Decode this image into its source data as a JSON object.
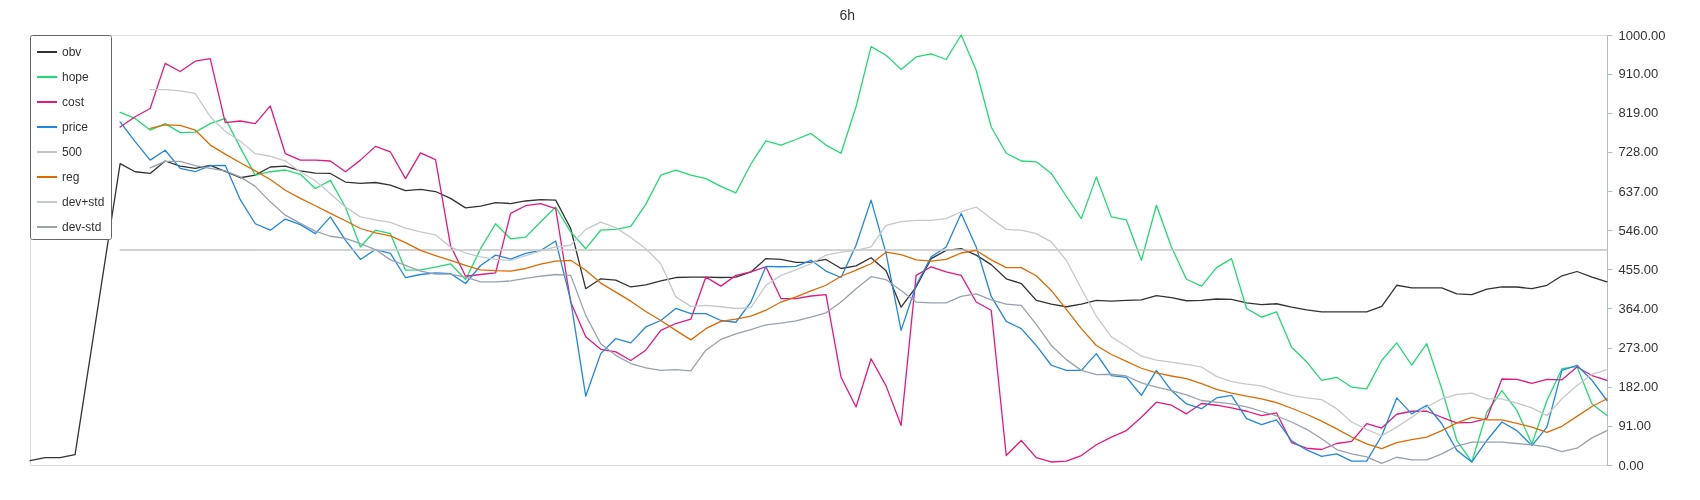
{
  "chart_data": {
    "type": "line",
    "title": "6h",
    "categories": [
      null,
      null,
      null,
      null,
      null,
      null,
      null,
      null,
      null,
      null,
      null,
      null,
      null,
      null,
      null,
      null,
      null,
      null,
      null,
      null,
      null,
      null,
      null,
      null,
      null,
      null,
      null,
      null,
      null,
      null,
      null,
      null,
      null,
      null,
      null,
      null,
      null,
      null,
      null,
      null,
      null,
      null,
      null,
      null,
      null,
      null,
      null,
      null,
      null,
      null,
      null,
      null,
      null,
      null,
      null,
      null,
      null,
      null,
      null,
      null,
      null,
      null,
      null,
      null,
      null,
      null,
      null,
      null,
      null,
      null,
      null,
      null,
      null,
      null,
      null,
      null,
      null,
      null,
      null,
      null,
      null,
      null,
      null,
      null,
      null,
      null,
      null,
      null,
      null,
      null,
      null,
      null,
      null,
      null,
      null,
      null,
      null,
      null,
      null,
      null,
      null,
      null,
      null,
      null,
      null,
      null
    ],
    "series": [
      {
        "name": "obv",
        "color": "#333333",
        "values": [
          10,
          17,
          17,
          24,
          null,
          null,
          701,
          682,
          678,
          707,
          695,
          690,
          697,
          683,
          668,
          674,
          693,
          695,
          684,
          679,
          678,
          658,
          655,
          657,
          651,
          638,
          641,
          636,
          620,
          598,
          602,
          610,
          608,
          614,
          617,
          616,
          550,
          410,
          433,
          430,
          414,
          419,
          428,
          436,
          437,
          437,
          436,
          437,
          449,
          480,
          478,
          471,
          472,
          478,
          457,
          463,
          482,
          452,
          367,
          414,
          480,
          499,
          503,
          488,
          466,
          433,
          422,
          383,
          374,
          368,
          374,
          383,
          381,
          383,
          384,
          394,
          389,
          382,
          383,
          386,
          385,
          377,
          373,
          375,
          367,
          361,
          356,
          356,
          356,
          356,
          369,
          418,
          412,
          412,
          412,
          398,
          396,
          409,
          414,
          414,
          410,
          418,
          440,
          450,
          437,
          426
        ]
      },
      {
        "name": "hope",
        "color": "#1fdc72",
        "values": [
          null,
          null,
          null,
          null,
          null,
          null,
          820,
          806,
          779,
          794,
          773,
          774,
          794,
          806,
          738,
          674,
          682,
          686,
          676,
          643,
          662,
          600,
          507,
          546,
          538,
          453,
          454,
          460,
          468,
          431,
          503,
          561,
          526,
          530,
          565,
          600,
          542,
          503,
          546,
          548,
          555,
          606,
          674,
          686,
          674,
          666,
          648,
          633,
          700,
          754,
          744,
          757,
          771,
          744,
          725,
          833,
          973,
          953,
          920,
          949,
          956,
          943,
          1000,
          918,
          786,
          725,
          707,
          705,
          678,
          625,
          573,
          670,
          577,
          570,
          476,
          604,
          507,
          432,
          416,
          459,
          480,
          364,
          344,
          356,
          274,
          240,
          197,
          204,
          181,
          177,
          243,
          284,
          232,
          282,
          177,
          57,
          7,
          123,
          173,
          127,
          49,
          150,
          224,
          229,
          142,
          115
        ]
      },
      {
        "name": "cost",
        "color": "#e8187e",
        "values": [
          null,
          null,
          null,
          null,
          null,
          null,
          786,
          810,
          829,
          934,
          915,
          939,
          945,
          796,
          800,
          794,
          835,
          724,
          709,
          709,
          707,
          682,
          709,
          741,
          728,
          666,
          726,
          710,
          510,
          439,
          443,
          447,
          585,
          603,
          608,
          596,
          379,
          298,
          269,
          263,
          243,
          267,
          313,
          329,
          339,
          437,
          416,
          441,
          449,
          461,
          387,
          387,
          393,
          396,
          204,
          135,
          247,
          184,
          92,
          441,
          461,
          449,
          441,
          379,
          360,
          22,
          57,
          17,
          7,
          9,
          22,
          47,
          65,
          80,
          111,
          146,
          139,
          119,
          143,
          139,
          133,
          125,
          115,
          121,
          52,
          39,
          36,
          50,
          55,
          96,
          86,
          118,
          125,
          125,
          111,
          98,
          99,
          108,
          200,
          199,
          190,
          199,
          198,
          228,
          208,
          197
        ]
      },
      {
        "name": "price",
        "color": "#1e88e5",
        "values": [
          null,
          null,
          null,
          null,
          null,
          null,
          798,
          752,
          709,
          732,
          690,
          682,
          696,
          697,
          617,
          561,
          546,
          572,
          559,
          538,
          577,
          523,
          478,
          501,
          492,
          436,
          443,
          447,
          445,
          422,
          464,
          488,
          479,
          492,
          499,
          521,
          383,
          160,
          259,
          294,
          284,
          321,
          336,
          364,
          352,
          352,
          336,
          332,
          379,
          462,
          461,
          462,
          476,
          451,
          436,
          511,
          616,
          492,
          313,
          418,
          484,
          507,
          585,
          507,
          392,
          334,
          317,
          278,
          232,
          220,
          220,
          259,
          208,
          204,
          162,
          220,
          173,
          142,
          131,
          156,
          162,
          108,
          94,
          105,
          56,
          35,
          20,
          26,
          9,
          9,
          68,
          156,
          119,
          139,
          96,
          34,
          7,
          57,
          100,
          80,
          45,
          88,
          220,
          232,
          197,
          150
        ]
      },
      {
        "name": "500",
        "color": "#c4c4c4",
        "values": [
          null,
          null,
          null,
          null,
          null,
          null,
          500,
          500,
          500,
          500,
          500,
          500,
          500,
          500,
          500,
          500,
          500,
          500,
          500,
          500,
          500,
          500,
          500,
          500,
          500,
          500,
          500,
          500,
          500,
          500,
          500,
          500,
          500,
          500,
          500,
          500,
          500,
          500,
          500,
          500,
          500,
          500,
          500,
          500,
          500,
          500,
          500,
          500,
          500,
          500,
          500,
          500,
          500,
          500,
          500,
          500,
          500,
          500,
          500,
          500,
          500,
          500,
          500,
          500,
          500,
          500,
          500,
          500,
          500,
          500,
          500,
          500,
          500,
          500,
          500,
          500,
          500,
          500,
          500,
          500,
          500,
          500,
          500,
          500,
          500,
          500,
          500,
          500,
          500,
          500,
          500,
          500,
          500,
          500,
          500,
          500,
          500,
          500,
          500,
          500,
          500,
          500,
          500,
          500,
          500,
          500
        ]
      },
      {
        "name": "reg",
        "color": "#e06a00",
        "values": [
          null,
          null,
          null,
          null,
          null,
          null,
          null,
          null,
          783,
          791,
          790,
          779,
          744,
          723,
          703,
          684,
          664,
          639,
          620,
          603,
          585,
          568,
          550,
          540,
          533,
          517,
          499,
          487,
          476,
          464,
          454,
          452,
          451,
          457,
          467,
          474,
          476,
          453,
          423,
          402,
          381,
          357,
          336,
          313,
          291,
          317,
          334,
          339,
          346,
          360,
          379,
          391,
          405,
          418,
          439,
          453,
          468,
          495,
          489,
          477,
          474,
          478,
          493,
          499,
          477,
          459,
          459,
          440,
          406,
          362,
          317,
          278,
          257,
          241,
          225,
          214,
          207,
          201,
          189,
          176,
          167,
          160,
          154,
          145,
          132,
          118,
          102,
          84,
          65,
          49,
          38,
          52,
          59,
          65,
          80,
          98,
          111,
          105,
          105,
          97,
          88,
          76,
          90,
          113,
          136,
          154
        ]
      },
      {
        "name": "dev+std",
        "color": "#c3c9cf",
        "values": [
          null,
          null,
          null,
          null,
          null,
          null,
          null,
          null,
          873,
          873,
          870,
          864,
          810,
          776,
          753,
          724,
          718,
          707,
          682,
          661,
          631,
          600,
          577,
          570,
          564,
          551,
          542,
          535,
          507,
          493,
          484,
          478,
          476,
          487,
          498,
          507,
          511,
          548,
          565,
          552,
          529,
          503,
          468,
          391,
          369,
          371,
          368,
          364,
          366,
          418,
          441,
          454,
          468,
          488,
          495,
          499,
          507,
          557,
          566,
          569,
          569,
          573,
          589,
          600,
          573,
          548,
          546,
          538,
          519,
          476,
          410,
          346,
          298,
          276,
          253,
          244,
          239,
          234,
          228,
          206,
          194,
          188,
          184,
          172,
          162,
          156,
          152,
          131,
          100,
          83,
          68,
          88,
          111,
          135,
          154,
          164,
          167,
          154,
          154,
          144,
          133,
          115,
          154,
          185,
          211,
          222
        ]
      },
      {
        "name": "dev-std",
        "color": "#98a2ad",
        "values": [
          null,
          null,
          null,
          null,
          null,
          null,
          null,
          null,
          691,
          706,
          706,
          696,
          690,
          684,
          670,
          648,
          612,
          581,
          562,
          544,
          532,
          527,
          515,
          501,
          477,
          464,
          451,
          444,
          444,
          437,
          426,
          426,
          428,
          434,
          439,
          443,
          441,
          348,
          282,
          255,
          236,
          226,
          220,
          222,
          219,
          267,
          292,
          305,
          315,
          326,
          330,
          335,
          344,
          354,
          379,
          410,
          438,
          431,
          406,
          379,
          377,
          377,
          392,
          398,
          384,
          374,
          371,
          327,
          278,
          245,
          220,
          210,
          211,
          207,
          191,
          181,
          173,
          163,
          150,
          146,
          142,
          135,
          125,
          114,
          100,
          83,
          61,
          36,
          26,
          19,
          4,
          18,
          12,
          12,
          26,
          44,
          53,
          53,
          53,
          50,
          47,
          42,
          31,
          39,
          63,
          80
        ]
      }
    ],
    "ylim": [
      0,
      1000
    ],
    "yticks": [
      {
        "value": 0,
        "label": "0.00"
      },
      {
        "value": 91,
        "label": "91.00"
      },
      {
        "value": 182,
        "label": "182.00"
      },
      {
        "value": 273,
        "label": "273.00"
      },
      {
        "value": 364,
        "label": "364.00"
      },
      {
        "value": 455,
        "label": "455.00"
      },
      {
        "value": 546,
        "label": "546.00"
      },
      {
        "value": 637,
        "label": "637.00"
      },
      {
        "value": 728,
        "label": "728.00"
      },
      {
        "value": 819,
        "label": "819.00"
      },
      {
        "value": 910,
        "label": "910.00"
      },
      {
        "value": 1000,
        "label": "1000.00"
      }
    ],
    "tick_labels": "y",
    "grid": false,
    "legend": "top left",
    "line_style": "solid"
  }
}
